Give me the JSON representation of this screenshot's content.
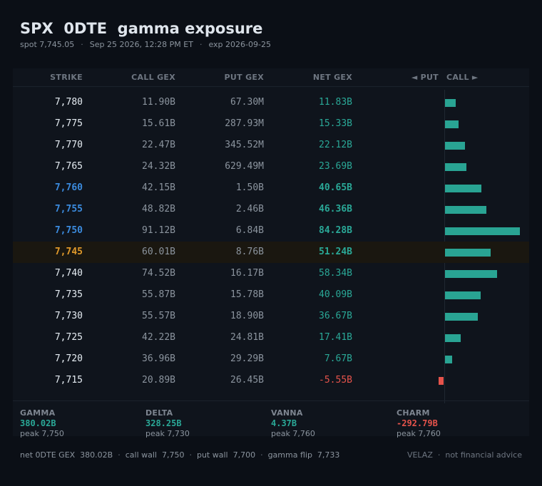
{
  "header": {
    "title": "SPX  0DTE  gamma exposure",
    "spot": "spot 7,745.05",
    "datetime": "Sep 25 2026, 12:28 PM ET",
    "expiry": "exp 2026-09-25"
  },
  "columns": {
    "strike": "STRIKE",
    "call_gex": "CALL GEX",
    "put_gex": "PUT GEX",
    "net_gex": "NET GEX",
    "bar_put": "◄ PUT",
    "bar_call": "CALL ►"
  },
  "rows": [
    {
      "strike": "7,780",
      "call": "11.90B",
      "put": "67.30M",
      "net": "11.83B",
      "net_value": 11.83,
      "type": "normal"
    },
    {
      "strike": "7,775",
      "call": "15.61B",
      "put": "287.93M",
      "net": "15.33B",
      "net_value": 15.33,
      "type": "normal"
    },
    {
      "strike": "7,770",
      "call": "22.47B",
      "put": "345.52M",
      "net": "22.12B",
      "net_value": 22.12,
      "type": "normal"
    },
    {
      "strike": "7,765",
      "call": "24.32B",
      "put": "629.49M",
      "net": "23.69B",
      "net_value": 23.69,
      "type": "normal"
    },
    {
      "strike": "7,760",
      "call": "42.15B",
      "put": "1.50B",
      "net": "40.65B",
      "net_value": 40.65,
      "type": "wall"
    },
    {
      "strike": "7,755",
      "call": "48.82B",
      "put": "2.46B",
      "net": "46.36B",
      "net_value": 46.36,
      "type": "wall"
    },
    {
      "strike": "7,750",
      "call": "91.12B",
      "put": "6.84B",
      "net": "84.28B",
      "net_value": 84.28,
      "type": "wall"
    },
    {
      "strike": "7,745",
      "call": "60.01B",
      "put": "8.76B",
      "net": "51.24B",
      "net_value": 51.24,
      "type": "spot"
    },
    {
      "strike": "7,740",
      "call": "74.52B",
      "put": "16.17B",
      "net": "58.34B",
      "net_value": 58.34,
      "type": "normal"
    },
    {
      "strike": "7,735",
      "call": "55.87B",
      "put": "15.78B",
      "net": "40.09B",
      "net_value": 40.09,
      "type": "normal"
    },
    {
      "strike": "7,730",
      "call": "55.57B",
      "put": "18.90B",
      "net": "36.67B",
      "net_value": 36.67,
      "type": "normal"
    },
    {
      "strike": "7,725",
      "call": "42.22B",
      "put": "24.81B",
      "net": "17.41B",
      "net_value": 17.41,
      "type": "normal"
    },
    {
      "strike": "7,720",
      "call": "36.96B",
      "put": "29.29B",
      "net": "7.67B",
      "net_value": 7.67,
      "type": "normal"
    },
    {
      "strike": "7,715",
      "call": "20.89B",
      "put": "26.45B",
      "net": "-5.55B",
      "net_value": -5.55,
      "type": "normal"
    }
  ],
  "summary": [
    {
      "label": "GAMMA",
      "value": "380.02B",
      "peak": "peak 7,750",
      "negative": false
    },
    {
      "label": "DELTA",
      "value": "328.25B",
      "peak": "peak 7,730",
      "negative": false
    },
    {
      "label": "VANNA",
      "value": "4.37B",
      "peak": "peak 7,760",
      "negative": false
    },
    {
      "label": "CHARM",
      "value": "-292.79B",
      "peak": "peak 7,760",
      "negative": true
    }
  ],
  "footer": {
    "net_gex": "net 0DTE GEX  380.02B",
    "call_wall": "call wall  7,750",
    "put_wall": "put wall  7,700",
    "gamma_flip": "gamma flip  7,733",
    "brand": "VELAZ",
    "disclaimer": "not financial advice"
  },
  "colors": {
    "positive": "#29a493",
    "negative": "#e5534b",
    "wall_strike": "#3b8bde",
    "spot_strike": "#e0992a"
  }
}
